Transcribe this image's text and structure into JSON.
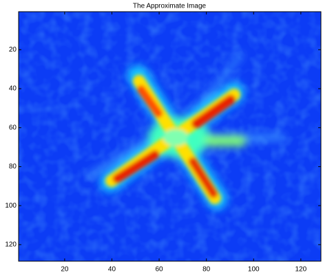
{
  "chart_data": {
    "type": "image",
    "title": "The Approximate Image",
    "xlim": [
      0.5,
      128.5
    ],
    "ylim": [
      0.5,
      128.5
    ],
    "y_reversed": true,
    "xticks": [
      20,
      40,
      60,
      80,
      100,
      120
    ],
    "yticks": [
      20,
      40,
      60,
      80,
      100,
      120
    ]
  }
}
